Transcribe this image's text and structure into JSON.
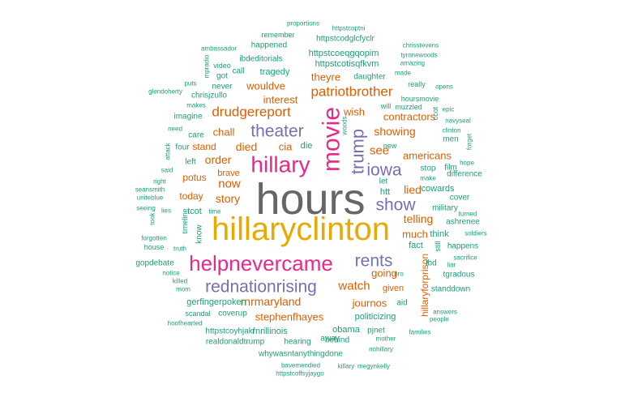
{
  "palette": {
    "teal": "#1b9e77",
    "orange": "#d95f02",
    "purple": "#7570b3",
    "magenta": "#e7298a",
    "mustard": "#e6ab02",
    "gray": "#666666"
  },
  "words": [
    {
      "text": "hours",
      "freq": 1.0,
      "color": "gray"
    },
    {
      "text": "hillaryclinton",
      "freq": 0.76,
      "color": "mustard"
    },
    {
      "text": "helpnevercame",
      "freq": 0.52,
      "color": "magenta"
    },
    {
      "text": "movie",
      "freq": 0.5,
      "color": "magenta"
    },
    {
      "text": "hillary",
      "freq": 0.46,
      "color": "magenta"
    },
    {
      "text": "rednationrising",
      "freq": 0.4,
      "color": "purple"
    },
    {
      "text": "theater",
      "freq": 0.4,
      "color": "purple"
    },
    {
      "text": "trump",
      "freq": 0.38,
      "color": "purple"
    },
    {
      "text": "rents",
      "freq": 0.36,
      "color": "purple"
    },
    {
      "text": "iowa",
      "freq": 0.34,
      "color": "purple"
    },
    {
      "text": "show",
      "freq": 0.34,
      "color": "purple"
    },
    {
      "text": "patriotbrother",
      "freq": 0.31,
      "color": "orange"
    },
    {
      "text": "drudgereport",
      "freq": 0.3,
      "color": "orange"
    },
    {
      "text": "rnrmaryland",
      "freq": 0.28,
      "color": "orange"
    },
    {
      "text": "watch",
      "freq": 0.28,
      "color": "orange"
    },
    {
      "text": "stephenfhayes",
      "freq": 0.27,
      "color": "orange"
    },
    {
      "text": "showing",
      "freq": 0.25,
      "color": "orange"
    },
    {
      "text": "see",
      "freq": 0.25,
      "color": "orange"
    },
    {
      "text": "died",
      "freq": 0.25,
      "color": "orange"
    },
    {
      "text": "now",
      "freq": 0.25,
      "color": "orange"
    },
    {
      "text": "story",
      "freq": 0.25,
      "color": "orange"
    },
    {
      "text": "order",
      "freq": 0.24,
      "color": "orange"
    },
    {
      "text": "lied",
      "freq": 0.24,
      "color": "orange"
    },
    {
      "text": "telling",
      "freq": 0.24,
      "color": "orange"
    },
    {
      "text": "contractors",
      "freq": 0.23,
      "color": "orange"
    },
    {
      "text": "wish",
      "freq": 0.23,
      "color": "orange"
    },
    {
      "text": "americans",
      "freq": 0.23,
      "color": "orange"
    },
    {
      "text": "cia",
      "freq": 0.23,
      "color": "orange"
    },
    {
      "text": "going",
      "freq": 0.22,
      "color": "orange"
    },
    {
      "text": "much",
      "freq": 0.22,
      "color": "orange"
    },
    {
      "text": "wouldve",
      "freq": 0.22,
      "color": "orange"
    },
    {
      "text": "theyre",
      "freq": 0.22,
      "color": "orange"
    },
    {
      "text": "interest",
      "freq": 0.22,
      "color": "orange"
    },
    {
      "text": "journos",
      "freq": 0.21,
      "color": "orange"
    },
    {
      "text": "hillaryforprison",
      "freq": 0.21,
      "color": "orange"
    },
    {
      "text": "chall",
      "freq": 0.2,
      "color": "orange"
    },
    {
      "text": "stand",
      "freq": 0.2,
      "color": "orange"
    },
    {
      "text": "potus",
      "freq": 0.2,
      "color": "orange"
    },
    {
      "text": "today",
      "freq": 0.2,
      "color": "orange"
    },
    {
      "text": "brave",
      "freq": 0.19,
      "color": "orange"
    },
    {
      "text": "given",
      "freq": 0.19,
      "color": "orange"
    },
    {
      "text": "tragedy",
      "freq": 0.19,
      "color": "teal"
    },
    {
      "text": "httpstcoeqgqopim",
      "freq": 0.19,
      "color": "teal"
    },
    {
      "text": "httpstcotisqfkvm",
      "freq": 0.19,
      "color": "teal"
    },
    {
      "text": "gerfingerpoken",
      "freq": 0.19,
      "color": "teal"
    },
    {
      "text": "politicizing",
      "freq": 0.19,
      "color": "teal"
    },
    {
      "text": "rnrillinois",
      "freq": 0.19,
      "color": "teal"
    },
    {
      "text": "obama",
      "freq": 0.18,
      "color": "teal"
    },
    {
      "text": "cowards",
      "freq": 0.18,
      "color": "teal"
    },
    {
      "text": "fact",
      "freq": 0.18,
      "color": "teal"
    },
    {
      "text": "whywasntanythingdone",
      "freq": 0.17,
      "color": "teal"
    },
    {
      "text": "httpstcodglcfyclr",
      "freq": 0.17,
      "color": "teal"
    },
    {
      "text": "httpstcoyhjakf",
      "freq": 0.16,
      "color": "teal"
    },
    {
      "text": "realdonaldtrump",
      "freq": 0.16,
      "color": "teal"
    },
    {
      "text": "hearing",
      "freq": 0.16,
      "color": "teal"
    },
    {
      "text": "behind",
      "freq": 0.16,
      "color": "teal"
    },
    {
      "text": "pjnet",
      "freq": 0.16,
      "color": "teal"
    },
    {
      "text": "away",
      "freq": 0.16,
      "color": "teal"
    },
    {
      "text": "stop",
      "freq": 0.16,
      "color": "teal"
    },
    {
      "text": "coverup",
      "freq": 0.16,
      "color": "teal"
    },
    {
      "text": "chrisjzullo",
      "freq": 0.16,
      "color": "teal"
    },
    {
      "text": "imagine",
      "freq": 0.16,
      "color": "teal"
    },
    {
      "text": "care",
      "freq": 0.16,
      "color": "teal"
    },
    {
      "text": "daughter",
      "freq": 0.15,
      "color": "teal"
    },
    {
      "text": "ibdeditorials",
      "freq": 0.15,
      "color": "teal"
    },
    {
      "text": "call",
      "freq": 0.15,
      "color": "teal"
    },
    {
      "text": "got",
      "freq": 0.15,
      "color": "teal"
    },
    {
      "text": "never",
      "freq": 0.15,
      "color": "teal"
    },
    {
      "text": "video",
      "freq": 0.14,
      "color": "teal"
    },
    {
      "text": "happened",
      "freq": 0.15,
      "color": "teal"
    },
    {
      "text": "remember",
      "freq": 0.13,
      "color": "teal"
    },
    {
      "text": "proportions",
      "freq": 0.12,
      "color": "teal"
    },
    {
      "text": "httpstcoptni",
      "freq": 0.12,
      "color": "teal"
    },
    {
      "text": "ambassador",
      "freq": 0.13,
      "color": "teal"
    },
    {
      "text": "chrisstevens",
      "freq": 0.12,
      "color": "teal"
    },
    {
      "text": "tyronewoods",
      "freq": 0.12,
      "color": "teal"
    },
    {
      "text": "amazing",
      "freq": 0.12,
      "color": "teal"
    },
    {
      "text": "made",
      "freq": 0.12,
      "color": "teal"
    },
    {
      "text": "really",
      "freq": 0.13,
      "color": "teal"
    },
    {
      "text": "opens",
      "freq": 0.12,
      "color": "teal"
    },
    {
      "text": "hoursmovie",
      "freq": 0.14,
      "color": "teal"
    },
    {
      "text": "muzzled",
      "freq": 0.14,
      "color": "teal"
    },
    {
      "text": "will",
      "freq": 0.14,
      "color": "teal"
    },
    {
      "text": "epic",
      "freq": 0.12,
      "color": "teal"
    },
    {
      "text": "navyseal",
      "freq": 0.12,
      "color": "teal"
    },
    {
      "text": "clinton",
      "freq": 0.12,
      "color": "teal"
    },
    {
      "text": "men",
      "freq": 0.14,
      "color": "teal"
    },
    {
      "text": "forget",
      "freq": 0.12,
      "color": "teal"
    },
    {
      "text": "hope",
      "freq": 0.12,
      "color": "teal"
    },
    {
      "text": "film",
      "freq": 0.14,
      "color": "teal"
    },
    {
      "text": "make",
      "freq": 0.13,
      "color": "teal"
    },
    {
      "text": "difference",
      "freq": 0.14,
      "color": "teal"
    },
    {
      "text": "cover",
      "freq": 0.14,
      "color": "teal"
    },
    {
      "text": "military",
      "freq": 0.14,
      "color": "teal"
    },
    {
      "text": "turned",
      "freq": 0.12,
      "color": "teal"
    },
    {
      "text": "ashrenee",
      "freq": 0.14,
      "color": "teal"
    },
    {
      "text": "soldiers",
      "freq": 0.12,
      "color": "teal"
    },
    {
      "text": "happens",
      "freq": 0.14,
      "color": "teal"
    },
    {
      "text": "sacrifice",
      "freq": 0.12,
      "color": "teal"
    },
    {
      "text": "liar",
      "freq": 0.12,
      "color": "teal"
    },
    {
      "text": "tgradous",
      "freq": 0.14,
      "color": "teal"
    },
    {
      "text": "standdown",
      "freq": 0.14,
      "color": "teal"
    },
    {
      "text": "aid",
      "freq": 0.14,
      "color": "teal"
    },
    {
      "text": "answers",
      "freq": 0.12,
      "color": "teal"
    },
    {
      "text": "people",
      "freq": 0.12,
      "color": "teal"
    },
    {
      "text": "families",
      "freq": 0.12,
      "color": "teal"
    },
    {
      "text": "mother",
      "freq": 0.12,
      "color": "teal"
    },
    {
      "text": "nohillary",
      "freq": 0.12,
      "color": "teal"
    },
    {
      "text": "killary",
      "freq": 0.12,
      "color": "teal"
    },
    {
      "text": "megynkelly",
      "freq": 0.12,
      "color": "teal"
    },
    {
      "text": "bavemendied",
      "freq": 0.12,
      "color": "teal"
    },
    {
      "text": "httpstcoffsyjaygo",
      "freq": 0.12,
      "color": "teal"
    },
    {
      "text": "hoofhearted",
      "freq": 0.12,
      "color": "teal"
    },
    {
      "text": "scandal",
      "freq": 0.13,
      "color": "teal"
    },
    {
      "text": "mom",
      "freq": 0.12,
      "color": "teal"
    },
    {
      "text": "killed",
      "freq": 0.12,
      "color": "teal"
    },
    {
      "text": "notice",
      "freq": 0.12,
      "color": "teal"
    },
    {
      "text": "gopdebate",
      "freq": 0.14,
      "color": "teal"
    },
    {
      "text": "house",
      "freq": 0.12,
      "color": "teal"
    },
    {
      "text": "forgotten",
      "freq": 0.12,
      "color": "teal"
    },
    {
      "text": "truth",
      "freq": 0.12,
      "color": "teal"
    },
    {
      "text": "took",
      "freq": 0.12,
      "color": "teal"
    },
    {
      "text": "timeline",
      "freq": 0.13,
      "color": "teal"
    },
    {
      "text": "know",
      "freq": 0.13,
      "color": "teal"
    },
    {
      "text": "tcot",
      "freq": 0.14,
      "color": "teal"
    },
    {
      "text": "time",
      "freq": 0.12,
      "color": "teal"
    },
    {
      "text": "lies",
      "freq": 0.12,
      "color": "teal"
    },
    {
      "text": "seeing",
      "freq": 0.12,
      "color": "teal"
    },
    {
      "text": "uniteblue",
      "freq": 0.12,
      "color": "teal"
    },
    {
      "text": "seansmith",
      "freq": 0.12,
      "color": "teal"
    },
    {
      "text": "right",
      "freq": 0.12,
      "color": "teal"
    },
    {
      "text": "said",
      "freq": 0.12,
      "color": "teal"
    },
    {
      "text": "attack",
      "freq": 0.12,
      "color": "teal"
    },
    {
      "text": "four",
      "freq": 0.13,
      "color": "teal"
    },
    {
      "text": "left",
      "freq": 0.14,
      "color": "teal"
    },
    {
      "text": "need",
      "freq": 0.12,
      "color": "teal"
    },
    {
      "text": "makes",
      "freq": 0.12,
      "color": "teal"
    },
    {
      "text": "glendoherty",
      "freq": 0.12,
      "color": "teal"
    },
    {
      "text": "puts",
      "freq": 0.12,
      "color": "teal"
    },
    {
      "text": "mpradio",
      "freq": 0.12,
      "color": "teal"
    },
    {
      "text": "woods",
      "freq": 0.12,
      "color": "teal"
    },
    {
      "text": "die",
      "freq": 0.14,
      "color": "teal"
    },
    {
      "text": "new",
      "freq": 0.13,
      "color": "teal"
    },
    {
      "text": "let",
      "freq": 0.13,
      "color": "teal"
    },
    {
      "text": "htt",
      "freq": 0.13,
      "color": "teal"
    },
    {
      "text": "ccot",
      "freq": 0.12,
      "color": "teal"
    },
    {
      "text": "think",
      "freq": 0.14,
      "color": "teal"
    },
    {
      "text": "still",
      "freq": 0.13,
      "color": "teal"
    },
    {
      "text": "ibd",
      "freq": 0.13,
      "color": "teal"
    },
    {
      "text": "nro",
      "freq": 0.12,
      "color": "teal"
    }
  ]
}
